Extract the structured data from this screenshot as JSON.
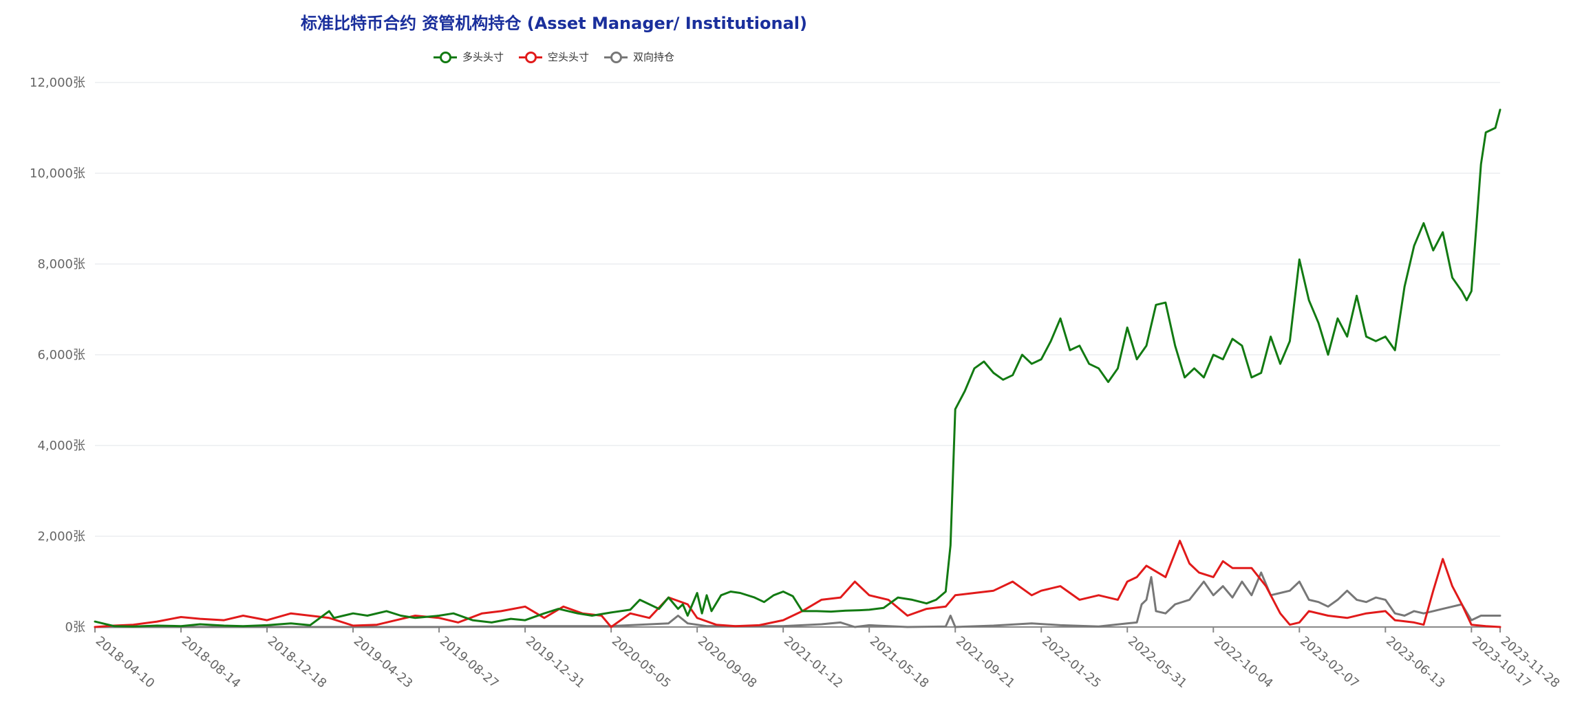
{
  "chart_data": {
    "type": "line",
    "title": "标准比特币合约 资管机构持仓 (Asset Manager/ Institutional)",
    "x_tick_labels": [
      "2018-04-10",
      "2018-08-14",
      "2018-12-18",
      "2019-04-23",
      "2019-08-27",
      "2019-12-31",
      "2020-05-05",
      "2020-09-08",
      "2021-01-12",
      "2021-05-18",
      "2021-09-21",
      "2022-01-25",
      "2022-05-31",
      "2022-10-04",
      "2023-02-07",
      "2023-06-13",
      "2023-10-17",
      "2023-11-28"
    ],
    "y_tick_labels": [
      "0张",
      "2,000张",
      "4,000张",
      "6,000张",
      "8,000张",
      "10,000张",
      "12,000张"
    ],
    "ylim": [
      0,
      12000
    ],
    "grid": true,
    "legend_position": "top-center",
    "series": [
      {
        "name": "多头头寸",
        "color": "#127a12",
        "points": [
          [
            "2018-04-10",
            120
          ],
          [
            "2018-05-08",
            20
          ],
          [
            "2018-06-05",
            10
          ],
          [
            "2018-07-10",
            30
          ],
          [
            "2018-08-14",
            20
          ],
          [
            "2018-09-11",
            60
          ],
          [
            "2018-10-16",
            30
          ],
          [
            "2018-11-13",
            20
          ],
          [
            "2018-12-18",
            40
          ],
          [
            "2019-01-22",
            80
          ],
          [
            "2019-02-19",
            40
          ],
          [
            "2019-03-19",
            350
          ],
          [
            "2019-03-26",
            200
          ],
          [
            "2019-04-09",
            250
          ],
          [
            "2019-04-23",
            300
          ],
          [
            "2019-05-14",
            250
          ],
          [
            "2019-06-11",
            350
          ],
          [
            "2019-07-02",
            250
          ],
          [
            "2019-07-23",
            200
          ],
          [
            "2019-08-27",
            250
          ],
          [
            "2019-09-17",
            300
          ],
          [
            "2019-10-15",
            150
          ],
          [
            "2019-11-12",
            100
          ],
          [
            "2019-12-10",
            180
          ],
          [
            "2019-12-31",
            150
          ],
          [
            "2020-01-28",
            300
          ],
          [
            "2020-02-18",
            400
          ],
          [
            "2020-03-17",
            300
          ],
          [
            "2020-04-07",
            250
          ],
          [
            "2020-05-05",
            320
          ],
          [
            "2020-06-02",
            380
          ],
          [
            "2020-06-16",
            600
          ],
          [
            "2020-06-30",
            500
          ],
          [
            "2020-07-14",
            400
          ],
          [
            "2020-07-28",
            650
          ],
          [
            "2020-08-11",
            400
          ],
          [
            "2020-08-18",
            500
          ],
          [
            "2020-08-25",
            250
          ],
          [
            "2020-09-08",
            750
          ],
          [
            "2020-09-15",
            300
          ],
          [
            "2020-09-22",
            700
          ],
          [
            "2020-09-29",
            350
          ],
          [
            "2020-10-13",
            700
          ],
          [
            "2020-10-27",
            780
          ],
          [
            "2020-11-10",
            750
          ],
          [
            "2020-12-01",
            650
          ],
          [
            "2020-12-15",
            550
          ],
          [
            "2020-12-29",
            700
          ],
          [
            "2021-01-12",
            780
          ],
          [
            "2021-01-26",
            680
          ],
          [
            "2021-02-09",
            350
          ],
          [
            "2021-03-02",
            350
          ],
          [
            "2021-03-23",
            340
          ],
          [
            "2021-04-13",
            360
          ],
          [
            "2021-05-04",
            370
          ],
          [
            "2021-05-18",
            380
          ],
          [
            "2021-06-08",
            420
          ],
          [
            "2021-06-29",
            650
          ],
          [
            "2021-07-20",
            600
          ],
          [
            "2021-08-10",
            520
          ],
          [
            "2021-08-24",
            600
          ],
          [
            "2021-09-07",
            780
          ],
          [
            "2021-09-14",
            1800
          ],
          [
            "2021-09-21",
            4800
          ],
          [
            "2021-10-05",
            5200
          ],
          [
            "2021-10-19",
            5700
          ],
          [
            "2021-11-02",
            5850
          ],
          [
            "2021-11-16",
            5600
          ],
          [
            "2021-11-30",
            5450
          ],
          [
            "2021-12-14",
            5550
          ],
          [
            "2021-12-28",
            6000
          ],
          [
            "2022-01-11",
            5800
          ],
          [
            "2022-01-25",
            5900
          ],
          [
            "2022-02-08",
            6300
          ],
          [
            "2022-02-22",
            6800
          ],
          [
            "2022-03-08",
            6100
          ],
          [
            "2022-03-22",
            6200
          ],
          [
            "2022-04-05",
            5800
          ],
          [
            "2022-04-19",
            5700
          ],
          [
            "2022-05-03",
            5400
          ],
          [
            "2022-05-17",
            5700
          ],
          [
            "2022-05-31",
            6600
          ],
          [
            "2022-06-14",
            5900
          ],
          [
            "2022-06-28",
            6200
          ],
          [
            "2022-07-12",
            7100
          ],
          [
            "2022-07-26",
            7150
          ],
          [
            "2022-08-09",
            6200
          ],
          [
            "2022-08-23",
            5500
          ],
          [
            "2022-09-06",
            5700
          ],
          [
            "2022-09-20",
            5500
          ],
          [
            "2022-10-04",
            6000
          ],
          [
            "2022-10-18",
            5900
          ],
          [
            "2022-11-01",
            6350
          ],
          [
            "2022-11-15",
            6200
          ],
          [
            "2022-11-29",
            5500
          ],
          [
            "2022-12-13",
            5600
          ],
          [
            "2022-12-27",
            6400
          ],
          [
            "2023-01-10",
            5800
          ],
          [
            "2023-01-24",
            6300
          ],
          [
            "2023-02-07",
            8100
          ],
          [
            "2023-02-21",
            7200
          ],
          [
            "2023-03-07",
            6700
          ],
          [
            "2023-03-21",
            6000
          ],
          [
            "2023-04-04",
            6800
          ],
          [
            "2023-04-18",
            6400
          ],
          [
            "2023-05-02",
            7300
          ],
          [
            "2023-05-16",
            6400
          ],
          [
            "2023-05-30",
            6300
          ],
          [
            "2023-06-13",
            6400
          ],
          [
            "2023-06-27",
            6100
          ],
          [
            "2023-07-11",
            7500
          ],
          [
            "2023-07-25",
            8400
          ],
          [
            "2023-08-08",
            8900
          ],
          [
            "2023-08-22",
            8300
          ],
          [
            "2023-09-05",
            8700
          ],
          [
            "2023-09-19",
            7700
          ],
          [
            "2023-10-03",
            7400
          ],
          [
            "2023-10-10",
            7200
          ],
          [
            "2023-10-17",
            7400
          ],
          [
            "2023-10-24",
            8800
          ],
          [
            "2023-10-31",
            10200
          ],
          [
            "2023-11-07",
            10900
          ],
          [
            "2023-11-21",
            11000
          ],
          [
            "2023-11-28",
            11400
          ]
        ]
      },
      {
        "name": "空头头寸",
        "color": "#e11a1a",
        "points": [
          [
            "2018-04-10",
            0
          ],
          [
            "2018-05-08",
            30
          ],
          [
            "2018-06-05",
            50
          ],
          [
            "2018-07-10",
            120
          ],
          [
            "2018-08-14",
            220
          ],
          [
            "2018-09-11",
            180
          ],
          [
            "2018-10-16",
            150
          ],
          [
            "2018-11-13",
            250
          ],
          [
            "2018-12-18",
            150
          ],
          [
            "2019-01-22",
            300
          ],
          [
            "2019-02-19",
            250
          ],
          [
            "2019-03-19",
            200
          ],
          [
            "2019-04-23",
            30
          ],
          [
            "2019-05-28",
            50
          ],
          [
            "2019-06-25",
            150
          ],
          [
            "2019-07-23",
            250
          ],
          [
            "2019-08-27",
            200
          ],
          [
            "2019-09-24",
            100
          ],
          [
            "2019-10-29",
            300
          ],
          [
            "2019-11-26",
            350
          ],
          [
            "2019-12-31",
            450
          ],
          [
            "2020-01-28",
            200
          ],
          [
            "2020-02-25",
            450
          ],
          [
            "2020-03-24",
            300
          ],
          [
            "2020-04-21",
            250
          ],
          [
            "2020-05-05",
            0
          ],
          [
            "2020-06-02",
            300
          ],
          [
            "2020-06-30",
            200
          ],
          [
            "2020-07-28",
            650
          ],
          [
            "2020-08-25",
            500
          ],
          [
            "2020-09-08",
            200
          ],
          [
            "2020-10-06",
            50
          ],
          [
            "2020-11-03",
            20
          ],
          [
            "2020-12-08",
            40
          ],
          [
            "2021-01-12",
            150
          ],
          [
            "2021-02-09",
            350
          ],
          [
            "2021-03-09",
            600
          ],
          [
            "2021-04-06",
            650
          ],
          [
            "2021-04-27",
            1000
          ],
          [
            "2021-05-18",
            700
          ],
          [
            "2021-06-15",
            600
          ],
          [
            "2021-07-13",
            250
          ],
          [
            "2021-08-10",
            400
          ],
          [
            "2021-09-07",
            450
          ],
          [
            "2021-09-21",
            700
          ],
          [
            "2021-10-19",
            750
          ],
          [
            "2021-11-16",
            800
          ],
          [
            "2021-12-14",
            1000
          ],
          [
            "2022-01-11",
            700
          ],
          [
            "2022-01-25",
            800
          ],
          [
            "2022-02-22",
            900
          ],
          [
            "2022-03-22",
            600
          ],
          [
            "2022-04-19",
            700
          ],
          [
            "2022-05-17",
            600
          ],
          [
            "2022-05-31",
            1000
          ],
          [
            "2022-06-14",
            1100
          ],
          [
            "2022-06-28",
            1350
          ],
          [
            "2022-07-26",
            1100
          ],
          [
            "2022-08-16",
            1900
          ],
          [
            "2022-08-30",
            1400
          ],
          [
            "2022-09-13",
            1200
          ],
          [
            "2022-10-04",
            1100
          ],
          [
            "2022-10-18",
            1450
          ],
          [
            "2022-11-01",
            1300
          ],
          [
            "2022-11-29",
            1300
          ],
          [
            "2022-12-20",
            900
          ],
          [
            "2023-01-10",
            300
          ],
          [
            "2023-01-24",
            50
          ],
          [
            "2023-02-07",
            100
          ],
          [
            "2023-02-21",
            350
          ],
          [
            "2023-03-21",
            250
          ],
          [
            "2023-04-18",
            200
          ],
          [
            "2023-05-16",
            300
          ],
          [
            "2023-06-13",
            350
          ],
          [
            "2023-06-27",
            150
          ],
          [
            "2023-07-25",
            100
          ],
          [
            "2023-08-08",
            50
          ],
          [
            "2023-08-22",
            800
          ],
          [
            "2023-09-05",
            1500
          ],
          [
            "2023-09-19",
            900
          ],
          [
            "2023-10-03",
            500
          ],
          [
            "2023-10-17",
            50
          ],
          [
            "2023-11-07",
            20
          ],
          [
            "2023-11-28",
            0
          ]
        ]
      },
      {
        "name": "双向持仓",
        "color": "#777777",
        "points": [
          [
            "2018-04-10",
            0
          ],
          [
            "2018-09-11",
            0
          ],
          [
            "2019-03-19",
            0
          ],
          [
            "2019-08-27",
            0
          ],
          [
            "2019-12-31",
            20
          ],
          [
            "2020-05-05",
            20
          ],
          [
            "2020-07-28",
            80
          ],
          [
            "2020-08-11",
            250
          ],
          [
            "2020-08-25",
            80
          ],
          [
            "2020-09-22",
            20
          ],
          [
            "2021-01-12",
            20
          ],
          [
            "2021-03-09",
            60
          ],
          [
            "2021-04-06",
            100
          ],
          [
            "2021-04-27",
            0
          ],
          [
            "2021-05-18",
            40
          ],
          [
            "2021-07-13",
            0
          ],
          [
            "2021-09-07",
            10
          ],
          [
            "2021-09-14",
            250
          ],
          [
            "2021-09-21",
            0
          ],
          [
            "2021-11-16",
            30
          ],
          [
            "2022-01-11",
            80
          ],
          [
            "2022-02-22",
            40
          ],
          [
            "2022-04-19",
            10
          ],
          [
            "2022-05-31",
            80
          ],
          [
            "2022-06-14",
            100
          ],
          [
            "2022-06-21",
            500
          ],
          [
            "2022-06-28",
            600
          ],
          [
            "2022-07-05",
            1100
          ],
          [
            "2022-07-12",
            350
          ],
          [
            "2022-07-26",
            300
          ],
          [
            "2022-08-09",
            500
          ],
          [
            "2022-08-30",
            600
          ],
          [
            "2022-09-20",
            1000
          ],
          [
            "2022-10-04",
            700
          ],
          [
            "2022-10-18",
            900
          ],
          [
            "2022-11-01",
            650
          ],
          [
            "2022-11-15",
            1000
          ],
          [
            "2022-11-29",
            700
          ],
          [
            "2022-12-13",
            1200
          ],
          [
            "2022-12-27",
            700
          ],
          [
            "2023-01-10",
            750
          ],
          [
            "2023-01-24",
            800
          ],
          [
            "2023-02-07",
            1000
          ],
          [
            "2023-02-21",
            600
          ],
          [
            "2023-03-07",
            550
          ],
          [
            "2023-03-21",
            450
          ],
          [
            "2023-04-04",
            600
          ],
          [
            "2023-04-18",
            800
          ],
          [
            "2023-05-02",
            600
          ],
          [
            "2023-05-16",
            550
          ],
          [
            "2023-05-30",
            650
          ],
          [
            "2023-06-13",
            600
          ],
          [
            "2023-06-27",
            300
          ],
          [
            "2023-07-11",
            250
          ],
          [
            "2023-07-25",
            350
          ],
          [
            "2023-08-08",
            300
          ],
          [
            "2023-08-22",
            350
          ],
          [
            "2023-09-05",
            400
          ],
          [
            "2023-09-19",
            450
          ],
          [
            "2023-10-03",
            500
          ],
          [
            "2023-10-17",
            150
          ],
          [
            "2023-10-31",
            250
          ],
          [
            "2023-11-28",
            250
          ]
        ]
      }
    ]
  },
  "colors": {
    "title": "#1a2f9c",
    "grid": "#e2e6ea",
    "axis": "#888888",
    "tick_text": "#666666"
  }
}
